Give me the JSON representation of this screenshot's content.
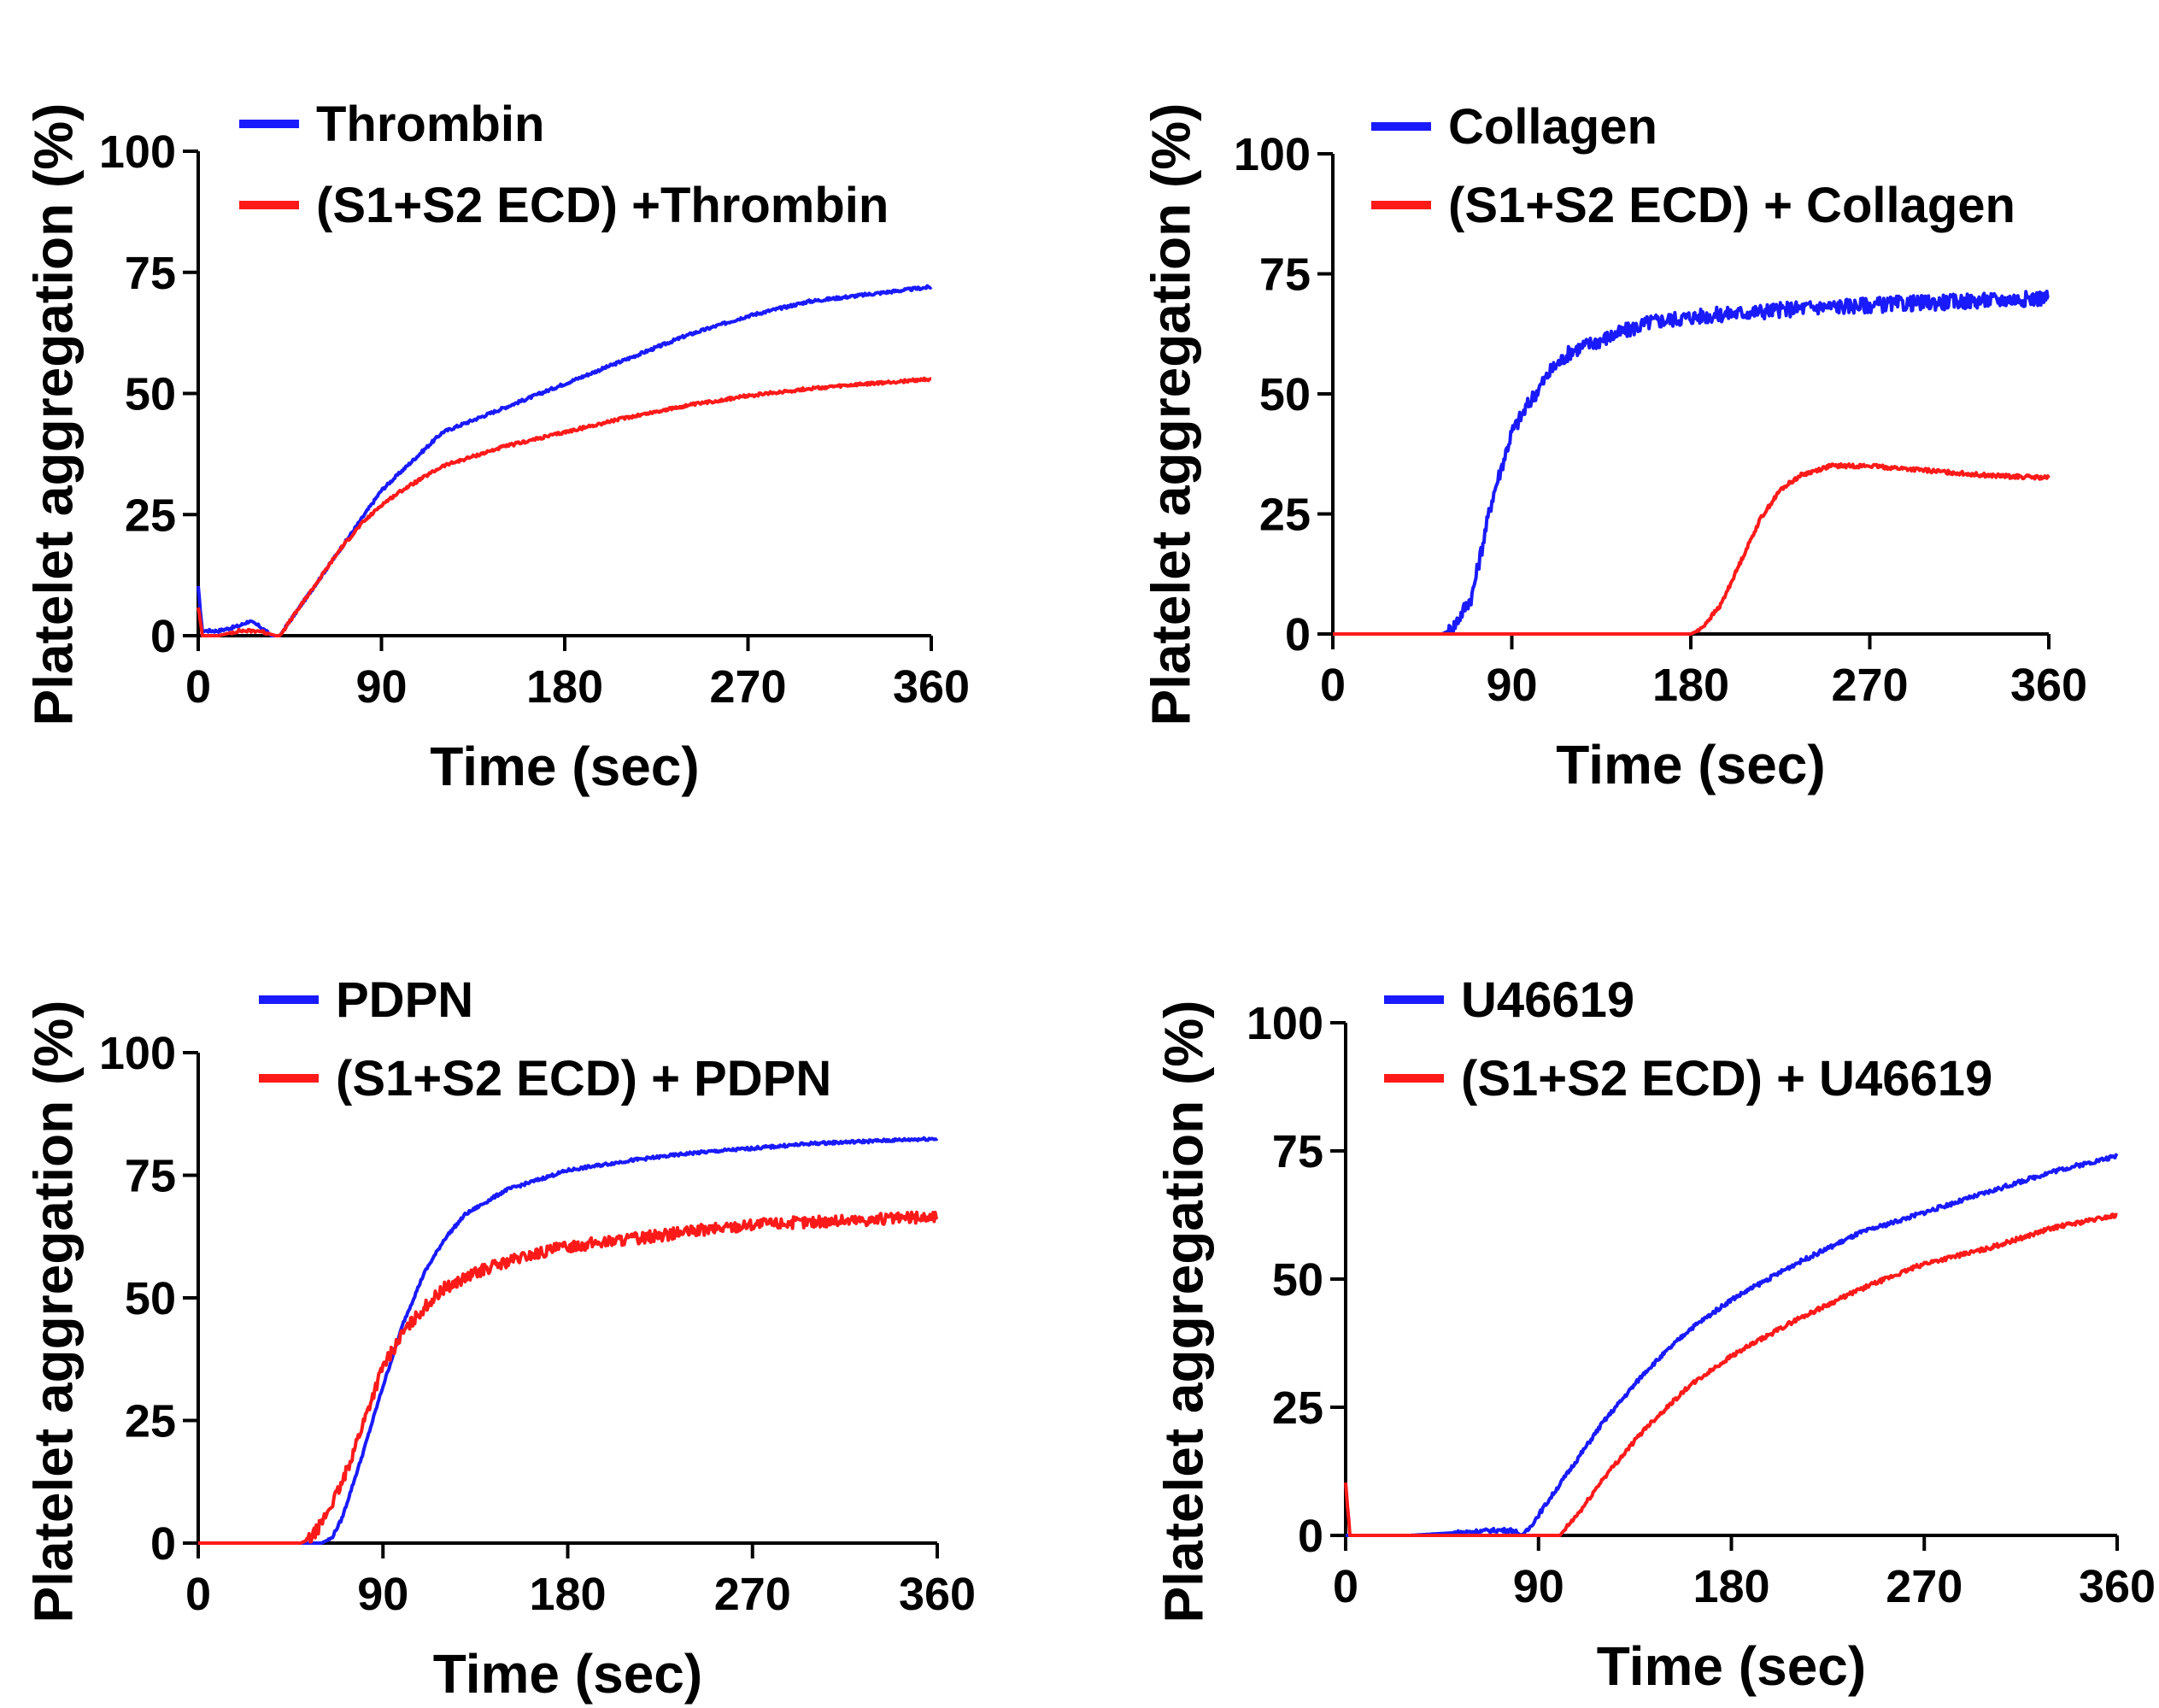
{
  "colors": {
    "blue": "#1a1aff",
    "red": "#ff1a1a",
    "axis": "#000000"
  },
  "chart_data": [
    {
      "type": "line",
      "panel": "top-left",
      "xlabel": "Time (sec)",
      "ylabel": "Platelet aggregation (%)",
      "xlim": [
        0,
        360
      ],
      "ylim": [
        0,
        100
      ],
      "xticks": [
        0,
        90,
        180,
        270,
        360
      ],
      "yticks": [
        0,
        25,
        50,
        75,
        100
      ],
      "series": [
        {
          "name": "Thrombin",
          "color": "blue",
          "noise": 0.3,
          "points": [
            [
              0,
              10
            ],
            [
              2,
              1
            ],
            [
              10,
              1
            ],
            [
              20,
              2
            ],
            [
              25,
              3
            ],
            [
              30,
              2
            ],
            [
              36,
              0
            ],
            [
              40,
              0
            ],
            [
              50,
              6
            ],
            [
              60,
              12
            ],
            [
              70,
              18
            ],
            [
              80,
              24
            ],
            [
              90,
              30
            ],
            [
              100,
              34
            ],
            [
              110,
              38
            ],
            [
              120,
              42
            ],
            [
              150,
              47
            ],
            [
              180,
              52
            ],
            [
              210,
              57
            ],
            [
              240,
              62
            ],
            [
              270,
              66
            ],
            [
              300,
              69
            ],
            [
              330,
              70.5
            ],
            [
              360,
              72
            ]
          ]
        },
        {
          "name": "(S1+S2 ECD) +Thrombin",
          "color": "red",
          "noise": 0.3,
          "points": [
            [
              0,
              6
            ],
            [
              2,
              0
            ],
            [
              10,
              0
            ],
            [
              20,
              1
            ],
            [
              30,
              1
            ],
            [
              38,
              0
            ],
            [
              40,
              0
            ],
            [
              50,
              6
            ],
            [
              60,
              12
            ],
            [
              70,
              18
            ],
            [
              80,
              23
            ],
            [
              90,
              27
            ],
            [
              100,
              30
            ],
            [
              110,
              32.5
            ],
            [
              120,
              35
            ],
            [
              150,
              39
            ],
            [
              180,
              42
            ],
            [
              210,
              45
            ],
            [
              240,
              47.5
            ],
            [
              270,
              49.5
            ],
            [
              300,
              51
            ],
            [
              330,
              52
            ],
            [
              360,
              53
            ]
          ]
        }
      ]
    },
    {
      "type": "line",
      "panel": "top-right",
      "xlabel": "Time (sec)",
      "ylabel": "Platelet aggregation (%)",
      "xlim": [
        0,
        360
      ],
      "ylim": [
        0,
        100
      ],
      "xticks": [
        0,
        90,
        180,
        270,
        360
      ],
      "yticks": [
        0,
        25,
        50,
        75,
        100
      ],
      "series": [
        {
          "name": "Collagen",
          "color": "blue",
          "noise": 1.6,
          "points": [
            [
              0,
              0
            ],
            [
              55,
              0
            ],
            [
              60,
              1
            ],
            [
              70,
              8
            ],
            [
              75,
              18
            ],
            [
              80,
              28
            ],
            [
              85,
              35
            ],
            [
              90,
              42
            ],
            [
              100,
              49
            ],
            [
              110,
              55
            ],
            [
              120,
              59
            ],
            [
              140,
              62
            ],
            [
              160,
              65
            ],
            [
              180,
              66
            ],
            [
              210,
              67
            ],
            [
              240,
              68
            ],
            [
              270,
              68.5
            ],
            [
              300,
              69
            ],
            [
              330,
              69.5
            ],
            [
              360,
              70
            ]
          ]
        },
        {
          "name": "(S1+S2 ECD) + Collagen",
          "color": "red",
          "noise": 0.4,
          "points": [
            [
              0,
              0
            ],
            [
              180,
              0
            ],
            [
              185,
              1
            ],
            [
              195,
              6
            ],
            [
              205,
              15
            ],
            [
              215,
              24
            ],
            [
              225,
              30
            ],
            [
              235,
              33
            ],
            [
              250,
              35
            ],
            [
              270,
              35
            ],
            [
              300,
              34
            ],
            [
              330,
              33
            ],
            [
              360,
              32.5
            ]
          ]
        }
      ]
    },
    {
      "type": "line",
      "panel": "bottom-left",
      "xlabel": "Time (sec)",
      "ylabel": "Platelet aggregation (%)",
      "xlim": [
        0,
        360
      ],
      "ylim": [
        0,
        100
      ],
      "xticks": [
        0,
        90,
        180,
        270,
        360
      ],
      "yticks": [
        0,
        25,
        50,
        75,
        100
      ],
      "series": [
        {
          "name": "PDPN",
          "color": "blue",
          "noise": 0.3,
          "points": [
            [
              0,
              0
            ],
            [
              60,
              0
            ],
            [
              65,
              1
            ],
            [
              70,
              5
            ],
            [
              80,
              18
            ],
            [
              90,
              32
            ],
            [
              100,
              45
            ],
            [
              110,
              55
            ],
            [
              120,
              62
            ],
            [
              130,
              67
            ],
            [
              150,
              72
            ],
            [
              180,
              76
            ],
            [
              210,
              78
            ],
            [
              240,
              79.5
            ],
            [
              270,
              80.5
            ],
            [
              300,
              81.5
            ],
            [
              330,
              82
            ],
            [
              360,
              82.5
            ]
          ]
        },
        {
          "name": "(S1+S2 ECD) + PDPN",
          "color": "red",
          "noise": 1.2,
          "points": [
            [
              0,
              0
            ],
            [
              50,
              0
            ],
            [
              55,
              1
            ],
            [
              60,
              4
            ],
            [
              70,
              12
            ],
            [
              80,
              24
            ],
            [
              90,
              36
            ],
            [
              100,
              43
            ],
            [
              110,
              48
            ],
            [
              120,
              52
            ],
            [
              140,
              56
            ],
            [
              160,
              58.5
            ],
            [
              180,
              60.5
            ],
            [
              210,
              62
            ],
            [
              240,
              63.5
            ],
            [
              270,
              65
            ],
            [
              300,
              65.5
            ],
            [
              330,
              66
            ],
            [
              360,
              66.5
            ]
          ]
        }
      ]
    },
    {
      "type": "line",
      "panel": "bottom-right",
      "xlabel": "Time (sec)",
      "ylabel": "Platelet aggregation (%)",
      "xlim": [
        0,
        360
      ],
      "ylim": [
        0,
        100
      ],
      "xticks": [
        0,
        90,
        180,
        270,
        360
      ],
      "yticks": [
        0,
        25,
        50,
        75,
        100
      ],
      "series": [
        {
          "name": "U46619",
          "color": "blue",
          "noise": 0.4,
          "points": [
            [
              0,
              0
            ],
            [
              30,
              0
            ],
            [
              50,
              0.5
            ],
            [
              70,
              1
            ],
            [
              78,
              1
            ],
            [
              82,
              0
            ],
            [
              85,
              1
            ],
            [
              90,
              4
            ],
            [
              100,
              10
            ],
            [
              110,
              16
            ],
            [
              120,
              22
            ],
            [
              140,
              32
            ],
            [
              160,
              40
            ],
            [
              180,
              46
            ],
            [
              210,
              53
            ],
            [
              240,
              59
            ],
            [
              270,
              63
            ],
            [
              300,
              67
            ],
            [
              330,
              71
            ],
            [
              360,
              74
            ]
          ]
        },
        {
          "name": "(S1+S2 ECD) + U46619",
          "color": "red",
          "noise": 0.4,
          "points": [
            [
              0,
              10
            ],
            [
              2,
              0
            ],
            [
              98,
              0
            ],
            [
              100,
              0
            ],
            [
              110,
              5
            ],
            [
              120,
              11
            ],
            [
              140,
              21
            ],
            [
              160,
              29
            ],
            [
              180,
              35
            ],
            [
              210,
              42
            ],
            [
              240,
              48
            ],
            [
              270,
              53
            ],
            [
              300,
              56
            ],
            [
              330,
              60
            ],
            [
              360,
              62.5
            ]
          ]
        }
      ]
    }
  ]
}
